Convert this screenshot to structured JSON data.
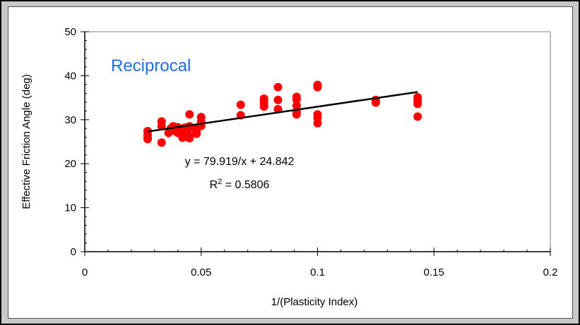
{
  "colors": {
    "points": "#ff0000",
    "trendline": "#000000",
    "annotation": "#1f6fe0",
    "panel_bg": "#ffffff",
    "frame_bg": "#c8c8c8"
  },
  "chart_data": {
    "type": "scatter",
    "xlabel": "1/(Plasticity Index)",
    "ylabel": "Effective Friction Angle (deg)",
    "xlim": [
      0,
      0.2
    ],
    "ylim": [
      0,
      50
    ],
    "x_ticks": [
      0,
      0.05,
      0.1,
      0.15,
      0.2
    ],
    "x_tick_labels": [
      "0",
      "0.05",
      "0.1",
      "0.15",
      "0.2"
    ],
    "y_ticks": [
      0,
      10,
      20,
      30,
      40,
      50
    ],
    "y_tick_labels": [
      "0",
      "10",
      "20",
      "30",
      "40",
      "50"
    ],
    "grid": false,
    "annotation": "Reciprocal",
    "equation_text": "y = 79.919/x + 24.842",
    "r2_prefix": "R",
    "r2_sup": "2",
    "r2_value": " = 0.5806",
    "trendline": {
      "x_start": 0.027,
      "x_end": 0.143,
      "slope_on_reciprocal": 79.919,
      "intercept": 24.842
    },
    "series": [
      {
        "points": [
          [
            0.027,
            27.4
          ],
          [
            0.027,
            26.6
          ],
          [
            0.027,
            25.8
          ],
          [
            0.027,
            25.6
          ],
          [
            0.033,
            29.6
          ],
          [
            0.033,
            28.5
          ],
          [
            0.033,
            24.8
          ],
          [
            0.036,
            27.0
          ],
          [
            0.037,
            28.0
          ],
          [
            0.038,
            28.5
          ],
          [
            0.039,
            27.4
          ],
          [
            0.04,
            28.3
          ],
          [
            0.04,
            27.0
          ],
          [
            0.041,
            27.9
          ],
          [
            0.042,
            26.3
          ],
          [
            0.042,
            25.9
          ],
          [
            0.043,
            28.2
          ],
          [
            0.044,
            27.3
          ],
          [
            0.045,
            31.2
          ],
          [
            0.045,
            28.5
          ],
          [
            0.045,
            26.2
          ],
          [
            0.045,
            25.8
          ],
          [
            0.047,
            28.0
          ],
          [
            0.048,
            27.2
          ],
          [
            0.048,
            26.8
          ],
          [
            0.05,
            30.6
          ],
          [
            0.05,
            29.6
          ],
          [
            0.05,
            28.6
          ],
          [
            0.067,
            33.4
          ],
          [
            0.067,
            31.0
          ],
          [
            0.077,
            34.8
          ],
          [
            0.077,
            34.2
          ],
          [
            0.077,
            33.6
          ],
          [
            0.077,
            33.0
          ],
          [
            0.083,
            37.4
          ],
          [
            0.083,
            34.5
          ],
          [
            0.083,
            32.4
          ],
          [
            0.091,
            35.2
          ],
          [
            0.091,
            34.6
          ],
          [
            0.091,
            33.2
          ],
          [
            0.091,
            31.8
          ],
          [
            0.091,
            31.2
          ],
          [
            0.1,
            37.9
          ],
          [
            0.1,
            37.4
          ],
          [
            0.1,
            31.2
          ],
          [
            0.1,
            30.4
          ],
          [
            0.1,
            29.2
          ],
          [
            0.125,
            34.5
          ],
          [
            0.125,
            33.9
          ],
          [
            0.143,
            35.1
          ],
          [
            0.143,
            34.3
          ],
          [
            0.143,
            33.6
          ],
          [
            0.143,
            30.7
          ]
        ]
      }
    ]
  }
}
